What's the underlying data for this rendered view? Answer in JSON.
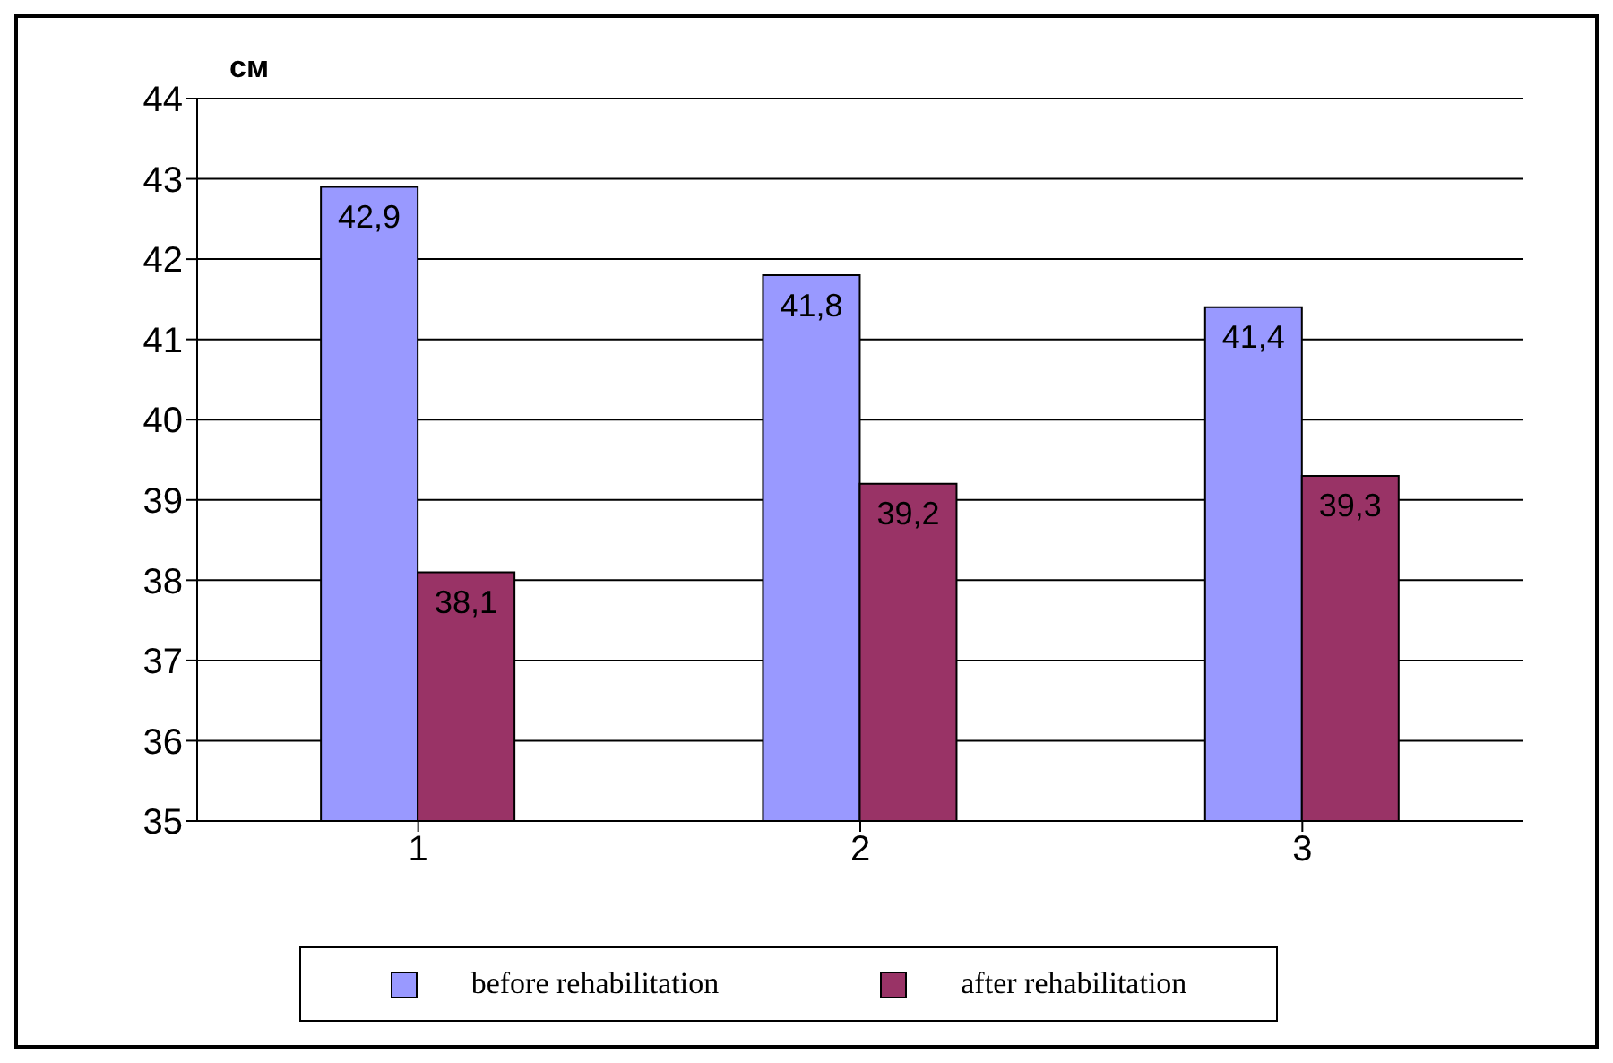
{
  "chart_data": {
    "type": "bar",
    "ylabel": "см",
    "categories": [
      "1",
      "2",
      "3"
    ],
    "series": [
      {
        "name": "before rehabilitation",
        "color": "#9999ff",
        "values": [
          42.9,
          41.8,
          41.4
        ],
        "value_labels": [
          "42,9",
          "41,8",
          "41,4"
        ]
      },
      {
        "name": "after rehabilitation",
        "color": "#993366",
        "values": [
          38.1,
          39.2,
          39.3
        ],
        "value_labels": [
          "38,1",
          "39,2",
          "39,3"
        ]
      }
    ],
    "ylim": [
      35,
      44
    ],
    "yticks": [
      35,
      36,
      37,
      38,
      39,
      40,
      41,
      42,
      43,
      44
    ],
    "grid": "y",
    "legend": "bottom"
  }
}
